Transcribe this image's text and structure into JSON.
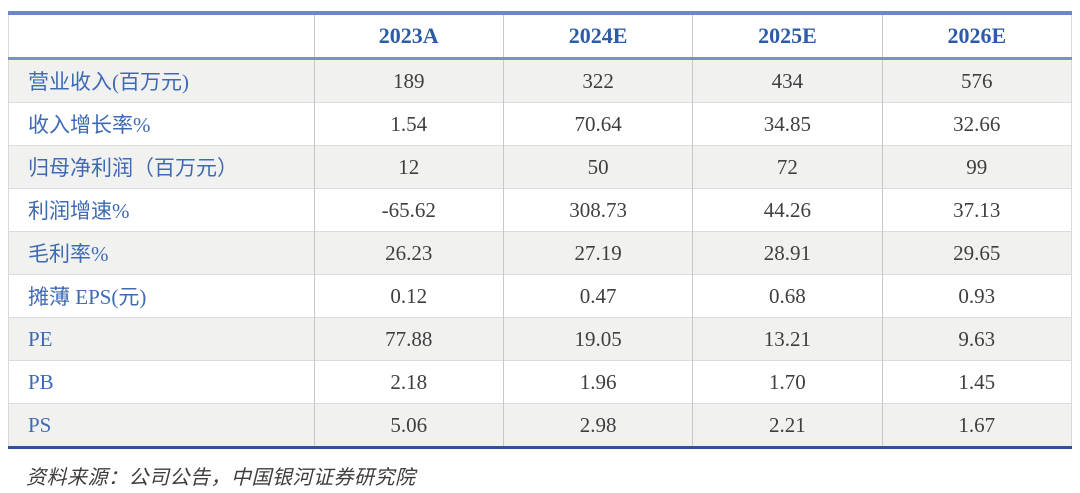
{
  "table": {
    "corner_label": "",
    "columns": [
      "2023A",
      "2024E",
      "2025E",
      "2026E"
    ],
    "rows": [
      {
        "label": "营业收入(百万元)",
        "values": [
          "189",
          "322",
          "434",
          "576"
        ]
      },
      {
        "label": "收入增长率%",
        "values": [
          "1.54",
          "70.64",
          "34.85",
          "32.66"
        ]
      },
      {
        "label": "归母净利润（百万元）",
        "values": [
          "12",
          "50",
          "72",
          "99"
        ]
      },
      {
        "label": "利润增速%",
        "values": [
          "-65.62",
          "308.73",
          "44.26",
          "37.13"
        ]
      },
      {
        "label": "毛利率%",
        "values": [
          "26.23",
          "27.19",
          "28.91",
          "29.65"
        ]
      },
      {
        "label": "摊薄 EPS(元)",
        "values": [
          "0.12",
          "0.47",
          "0.68",
          "0.93"
        ]
      },
      {
        "label": "PE",
        "values": [
          "77.88",
          "19.05",
          "13.21",
          "9.63"
        ]
      },
      {
        "label": "PB",
        "values": [
          "2.18",
          "1.96",
          "1.70",
          "1.45"
        ]
      },
      {
        "label": "PS",
        "values": [
          "5.06",
          "2.98",
          "2.21",
          "1.67"
        ]
      }
    ]
  },
  "chart_data": {
    "type": "table",
    "title": "",
    "categories": [
      "2023A",
      "2024E",
      "2025E",
      "2026E"
    ],
    "series": [
      {
        "name": "营业收入(百万元)",
        "values": [
          189,
          322,
          434,
          576
        ]
      },
      {
        "name": "收入增长率%",
        "values": [
          1.54,
          70.64,
          34.85,
          32.66
        ]
      },
      {
        "name": "归母净利润（百万元）",
        "values": [
          12,
          50,
          72,
          99
        ]
      },
      {
        "name": "利润增速%",
        "values": [
          -65.62,
          308.73,
          44.26,
          37.13
        ]
      },
      {
        "name": "毛利率%",
        "values": [
          26.23,
          27.19,
          28.91,
          29.65
        ]
      },
      {
        "name": "摊薄 EPS(元)",
        "values": [
          0.12,
          0.47,
          0.68,
          0.93
        ]
      },
      {
        "name": "PE",
        "values": [
          77.88,
          19.05,
          13.21,
          9.63
        ]
      },
      {
        "name": "PB",
        "values": [
          2.18,
          1.96,
          1.7,
          1.45
        ]
      },
      {
        "name": "PS",
        "values": [
          5.06,
          2.98,
          2.21,
          1.67
        ]
      }
    ]
  },
  "footer": {
    "source_note": "资料来源：公司公告，中国银河证券研究院"
  },
  "colors": {
    "header_text": "#2e5ba8",
    "label_text": "#3e6ab3",
    "value_text": "#3f3f3f",
    "top_border": "#6d87c1",
    "header_underline": "#7b90c7",
    "bottom_border": "#2f5496",
    "row_band": "#f1f1f0",
    "grid_line": "#dcdcdc",
    "column_line": "#c8c8c8"
  }
}
